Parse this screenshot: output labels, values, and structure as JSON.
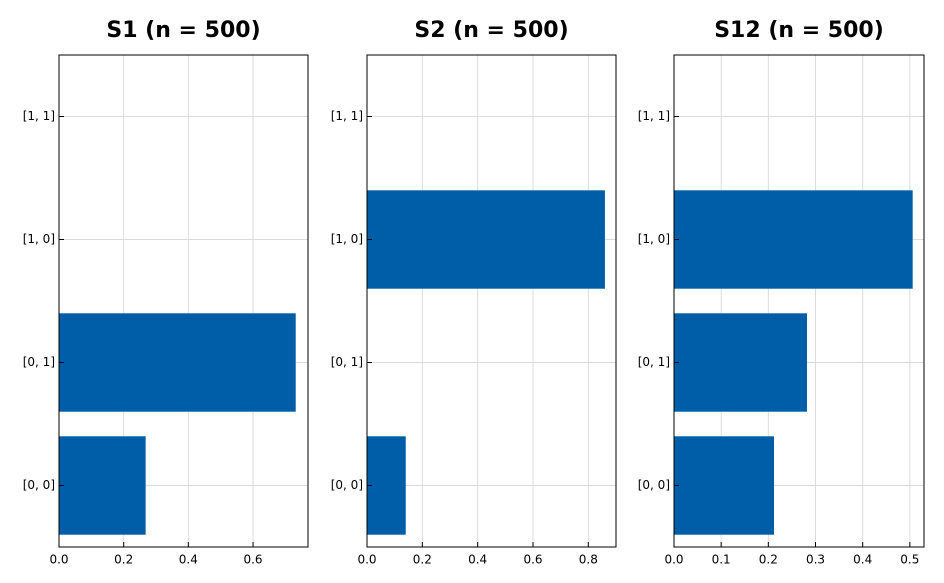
{
  "colors": {
    "bar": "#005ea8",
    "grid": "#dcdcdc",
    "axis": "#000000"
  },
  "chart_data": [
    {
      "type": "bar",
      "orientation": "horizontal",
      "title": "S1 (n = 500)",
      "categories": [
        "[0, 0]",
        "[0, 1]",
        "[1, 0]",
        "[1, 1]"
      ],
      "values": [
        0.268,
        0.732,
        0,
        0
      ],
      "xlim": [
        0,
        0.77
      ],
      "xticks": [
        0.0,
        0.2,
        0.4,
        0.6
      ],
      "xtick_labels": [
        "0.0",
        "0.2",
        "0.4",
        "0.6"
      ],
      "xlabel": "",
      "ylabel": "",
      "grid": true
    },
    {
      "type": "bar",
      "orientation": "horizontal",
      "title": "S2 (n = 500)",
      "categories": [
        "[0, 0]",
        "[0, 1]",
        "[1, 0]",
        "[1, 1]"
      ],
      "values": [
        0.14,
        0,
        0.86,
        0
      ],
      "xlim": [
        0,
        0.9
      ],
      "xticks": [
        0.0,
        0.2,
        0.4,
        0.6,
        0.8
      ],
      "xtick_labels": [
        "0.0",
        "0.2",
        "0.4",
        "0.6",
        "0.8"
      ],
      "xlabel": "",
      "ylabel": "",
      "grid": true
    },
    {
      "type": "bar",
      "orientation": "horizontal",
      "title": "S12 (n = 500)",
      "categories": [
        "[0, 0]",
        "[0, 1]",
        "[1, 0]",
        "[1, 1]"
      ],
      "values": [
        0.212,
        0.282,
        0.506,
        0
      ],
      "xlim": [
        0,
        0.53
      ],
      "xticks": [
        0.0,
        0.1,
        0.2,
        0.3,
        0.4,
        0.5
      ],
      "xtick_labels": [
        "0.0",
        "0.1",
        "0.2",
        "0.3",
        "0.4",
        "0.5"
      ],
      "xlabel": "",
      "ylabel": "",
      "grid": true
    }
  ]
}
